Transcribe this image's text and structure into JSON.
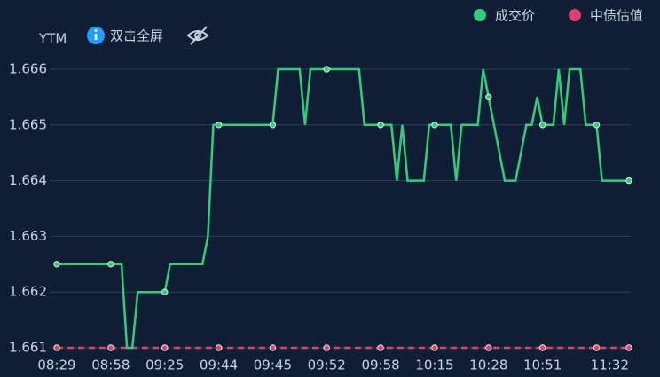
{
  "chart_data": {
    "type": "line",
    "y_label": "YTM",
    "toolbar_text": "双击全屏",
    "categories": [
      "08:29",
      null,
      null,
      null,
      null,
      null,
      null,
      null,
      null,
      null,
      "08:58",
      null,
      null,
      null,
      null,
      null,
      null,
      null,
      null,
      null,
      "09:25",
      null,
      null,
      null,
      null,
      null,
      null,
      null,
      null,
      null,
      "09:44",
      null,
      null,
      null,
      null,
      null,
      null,
      null,
      null,
      null,
      "09:45",
      null,
      null,
      null,
      null,
      null,
      null,
      null,
      null,
      null,
      "09:52",
      null,
      null,
      null,
      null,
      null,
      null,
      null,
      null,
      null,
      "09:58",
      null,
      null,
      null,
      null,
      null,
      null,
      null,
      null,
      null,
      "10:15",
      null,
      null,
      null,
      null,
      null,
      null,
      null,
      null,
      null,
      "10:28",
      null,
      null,
      null,
      null,
      null,
      null,
      null,
      null,
      null,
      "10:51",
      null,
      null,
      null,
      null,
      null,
      null,
      null,
      null,
      null,
      null,
      null,
      null,
      null,
      null,
      null,
      "11:32"
    ],
    "series": [
      {
        "name": "成交价",
        "color": "#2fcf7a",
        "dashed": false,
        "values": [
          1.6625,
          1.6625,
          1.6625,
          1.6625,
          1.6625,
          1.6625,
          1.6625,
          1.6625,
          1.6625,
          1.6625,
          1.6625,
          1.6625,
          1.6625,
          1.661,
          1.661,
          1.662,
          1.662,
          1.662,
          1.662,
          1.662,
          1.662,
          1.6625,
          1.6625,
          1.6625,
          1.6625,
          1.6625,
          1.6625,
          1.6625,
          1.663,
          1.665,
          1.665,
          1.665,
          1.665,
          1.665,
          1.665,
          1.665,
          1.665,
          1.665,
          1.665,
          1.665,
          1.665,
          1.666,
          1.666,
          1.666,
          1.666,
          1.666,
          1.665,
          1.666,
          1.666,
          1.666,
          1.666,
          1.666,
          1.666,
          1.666,
          1.666,
          1.666,
          1.666,
          1.665,
          1.665,
          1.665,
          1.665,
          1.665,
          1.665,
          1.664,
          1.665,
          1.664,
          1.664,
          1.664,
          1.664,
          1.665,
          1.665,
          1.665,
          1.665,
          1.665,
          1.664,
          1.665,
          1.665,
          1.665,
          1.665,
          1.666,
          1.6655,
          1.665,
          1.6645,
          1.664,
          1.664,
          1.664,
          1.6645,
          1.665,
          1.665,
          1.6655,
          1.665,
          1.665,
          1.665,
          1.666,
          1.665,
          1.666,
          1.666,
          1.666,
          1.665,
          1.665,
          1.665,
          1.664,
          1.664,
          1.664,
          1.664,
          1.664,
          1.664
        ]
      },
      {
        "name": "中债估值",
        "color": "#e0406a",
        "dashed": true,
        "values": [
          1.661,
          1.661,
          1.661,
          1.661,
          1.661,
          1.661,
          1.661,
          1.661,
          1.661,
          1.661,
          1.661,
          1.661,
          1.661,
          1.661,
          1.661,
          1.661,
          1.661,
          1.661,
          1.661,
          1.661,
          1.661,
          1.661,
          1.661,
          1.661,
          1.661,
          1.661,
          1.661,
          1.661,
          1.661,
          1.661,
          1.661,
          1.661,
          1.661,
          1.661,
          1.661,
          1.661,
          1.661,
          1.661,
          1.661,
          1.661,
          1.661,
          1.661,
          1.661,
          1.661,
          1.661,
          1.661,
          1.661,
          1.661,
          1.661,
          1.661,
          1.661,
          1.661,
          1.661,
          1.661,
          1.661,
          1.661,
          1.661,
          1.661,
          1.661,
          1.661,
          1.661,
          1.661,
          1.661,
          1.661,
          1.661,
          1.661,
          1.661,
          1.661,
          1.661,
          1.661,
          1.661,
          1.661,
          1.661,
          1.661,
          1.661,
          1.661,
          1.661,
          1.661,
          1.661,
          1.661,
          1.661,
          1.661,
          1.661,
          1.661,
          1.661,
          1.661,
          1.661,
          1.661,
          1.661,
          1.661,
          1.661,
          1.661,
          1.661,
          1.661,
          1.661,
          1.661,
          1.661,
          1.661,
          1.661,
          1.661,
          1.661,
          1.661,
          1.661,
          1.661,
          1.661,
          1.661,
          1.661
        ]
      }
    ],
    "ylim": [
      1.661,
      1.666
    ],
    "yticks": [
      1.661,
      1.662,
      1.663,
      1.664,
      1.665,
      1.666
    ],
    "grid": true,
    "legend": "top-right"
  }
}
